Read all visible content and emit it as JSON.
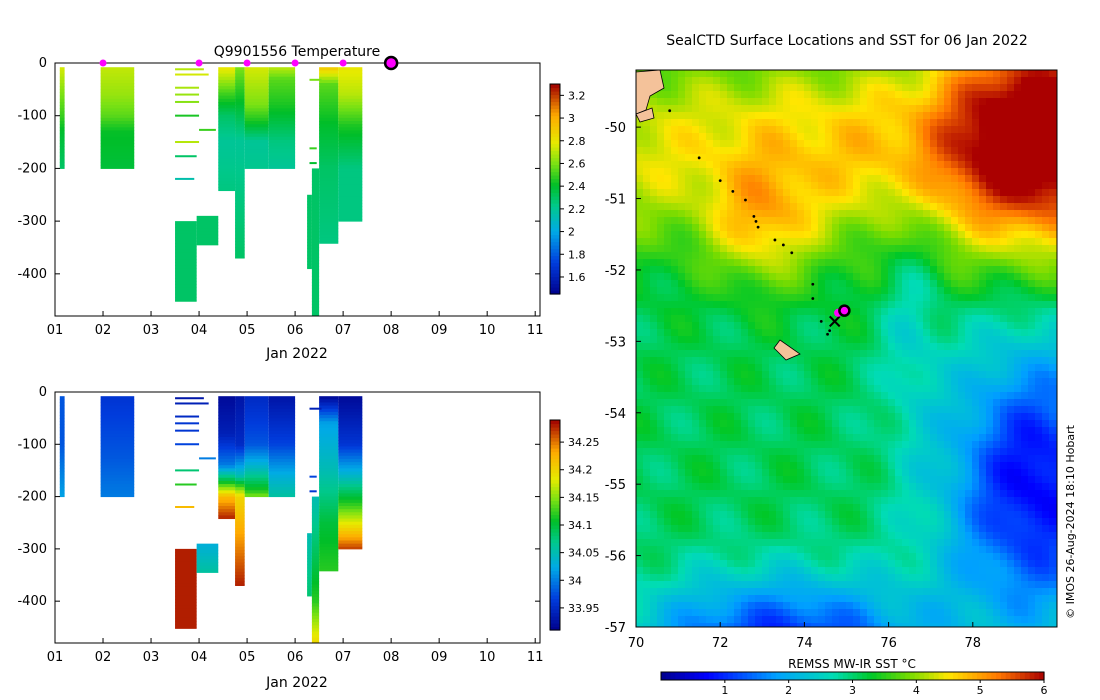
{
  "colors": {
    "axis": "#000000",
    "background": "#ffffff",
    "cruise_marker": "#ff00ff",
    "land": "#f4c29a"
  },
  "chart_data": [
    {
      "id": "temperature-section",
      "type": "heatmap",
      "title": "Q9901556  Temperature",
      "xlabel": "Jan 2022",
      "ylabel": "",
      "xlim": [
        1,
        11.1
      ],
      "ylim": [
        -480,
        0
      ],
      "x_ticks": [
        "01",
        "02",
        "03",
        "04",
        "05",
        "06",
        "07",
        "08",
        "09",
        "10",
        "11"
      ],
      "y_ticks": [
        "0",
        "-100",
        "-200",
        "-300",
        "-400"
      ],
      "y_tick_values": [
        0,
        -100,
        -200,
        -300,
        -400
      ],
      "colorbar": {
        "min": 1.45,
        "max": 3.3,
        "ticks": [
          "1.6",
          "1.8",
          "2",
          "2.2",
          "2.4",
          "2.6",
          "2.8",
          "3",
          "3.2"
        ],
        "tick_values": [
          1.6,
          1.8,
          2,
          2.2,
          2.4,
          2.6,
          2.8,
          3,
          3.2
        ]
      },
      "surface_markers_day": [
        2.0,
        4.0,
        5.0,
        6.0,
        7.0
      ],
      "current_marker_day": 8.0,
      "profiles": [
        {
          "x0": 1.1,
          "x1": 1.2,
          "depth_max": 200,
          "stops": [
            [
              10,
              2.75
            ],
            [
              60,
              2.6
            ],
            [
              100,
              2.5
            ],
            [
              130,
              2.4
            ],
            [
              200,
              2.3
            ]
          ]
        },
        {
          "x0": 1.95,
          "x1": 2.65,
          "depth_max": 200,
          "stops": [
            [
              10,
              2.72
            ],
            [
              60,
              2.65
            ],
            [
              100,
              2.55
            ],
            [
              130,
              2.42
            ],
            [
              200,
              2.38
            ]
          ]
        },
        {
          "x0": 3.5,
          "x1": 3.95,
          "depth_max": 452,
          "depth_min": 300,
          "stops": [
            [
              300,
              2.3
            ],
            [
              452,
              2.3
            ]
          ]
        },
        {
          "x0": 3.95,
          "x1": 4.4,
          "depth_max": 345,
          "depth_min": 290,
          "stops": [
            [
              290,
              2.3
            ],
            [
              345,
              2.3
            ]
          ]
        },
        {
          "x0": 4.4,
          "x1": 4.75,
          "depth_max": 242,
          "stops": [
            [
              10,
              2.8
            ],
            [
              60,
              2.5
            ],
            [
              100,
              2.3
            ],
            [
              150,
              2.2
            ],
            [
              242,
              2.25
            ]
          ]
        },
        {
          "x0": 4.75,
          "x1": 4.95,
          "depth_max": 370,
          "stops": [
            [
              10,
              2.6
            ],
            [
              60,
              2.45
            ],
            [
              150,
              2.2
            ],
            [
              250,
              2.25
            ],
            [
              370,
              2.3
            ]
          ]
        },
        {
          "x0": 4.95,
          "x1": 5.45,
          "depth_max": 200,
          "stops": [
            [
              10,
              2.75
            ],
            [
              80,
              2.6
            ],
            [
              110,
              2.45
            ],
            [
              150,
              2.2
            ],
            [
              200,
              2.22
            ]
          ]
        },
        {
          "x0": 5.45,
          "x1": 6.0,
          "depth_max": 200,
          "stops": [
            [
              10,
              2.7
            ],
            [
              30,
              2.55
            ],
            [
              80,
              2.45
            ],
            [
              150,
              2.25
            ],
            [
              200,
              2.2
            ]
          ]
        },
        {
          "x0": 6.25,
          "x1": 6.35,
          "depth_max": 390,
          "depth_min": 250,
          "stops": [
            [
              250,
              2.3
            ],
            [
              390,
              2.3
            ]
          ]
        },
        {
          "x0": 6.35,
          "x1": 6.5,
          "depth_max": 480,
          "depth_min": 200,
          "stops": [
            [
              200,
              2.3
            ],
            [
              480,
              2.3
            ]
          ]
        },
        {
          "x0": 6.5,
          "x1": 6.9,
          "depth_max": 342,
          "stops": [
            [
              10,
              2.9
            ],
            [
              40,
              2.55
            ],
            [
              120,
              2.4
            ],
            [
              200,
              2.3
            ],
            [
              342,
              2.25
            ]
          ]
        },
        {
          "x0": 6.9,
          "x1": 7.4,
          "depth_max": 300,
          "stops": [
            [
              10,
              2.8
            ],
            [
              60,
              2.7
            ],
            [
              120,
              2.45
            ],
            [
              200,
              2.25
            ],
            [
              300,
              2.25
            ]
          ]
        }
      ],
      "thin_lines": [
        {
          "x0": 3.5,
          "x1": 4.1,
          "depth": 10,
          "value": 2.7
        },
        {
          "x0": 3.5,
          "x1": 4.2,
          "depth": 20,
          "value": 2.75
        },
        {
          "x0": 3.5,
          "x1": 4.0,
          "depth": 45,
          "value": 2.68
        },
        {
          "x0": 3.5,
          "x1": 4.0,
          "depth": 58,
          "value": 2.65
        },
        {
          "x0": 3.5,
          "x1": 4.0,
          "depth": 72,
          "value": 2.62
        },
        {
          "x0": 3.5,
          "x1": 4.0,
          "depth": 98,
          "value": 2.45
        },
        {
          "x0": 4.0,
          "x1": 4.35,
          "depth": 125,
          "value": 2.5
        },
        {
          "x0": 3.5,
          "x1": 4.0,
          "depth": 148,
          "value": 2.7
        },
        {
          "x0": 3.5,
          "x1": 3.95,
          "depth": 175,
          "value": 2.3
        },
        {
          "x0": 3.5,
          "x1": 3.9,
          "depth": 218,
          "value": 2.15
        },
        {
          "x0": 6.3,
          "x1": 6.45,
          "depth": 160,
          "value": 2.5
        },
        {
          "x0": 6.3,
          "x1": 6.45,
          "depth": 188,
          "value": 2.4
        },
        {
          "x0": 6.3,
          "x1": 6.55,
          "depth": 30,
          "value": 2.6
        }
      ]
    },
    {
      "id": "salinity-section",
      "type": "heatmap",
      "title": "",
      "xlabel": "Jan 2022",
      "ylabel": "",
      "xlim": [
        1,
        11.1
      ],
      "ylim": [
        -480,
        0
      ],
      "x_ticks": [
        "01",
        "02",
        "03",
        "04",
        "05",
        "06",
        "07",
        "08",
        "09",
        "10",
        "11"
      ],
      "y_ticks": [
        "0",
        "-100",
        "-200",
        "-300",
        "-400"
      ],
      "y_tick_values": [
        0,
        -100,
        -200,
        -300,
        -400
      ],
      "colorbar": {
        "min": 33.91,
        "max": 34.29,
        "ticks": [
          "33.95",
          "34",
          "34.05",
          "34.1",
          "34.15",
          "34.2",
          "34.25"
        ],
        "tick_values": [
          33.95,
          34,
          34.05,
          34.1,
          34.15,
          34.2,
          34.25
        ]
      },
      "profiles": [
        {
          "x0": 1.1,
          "x1": 1.2,
          "depth_max": 200,
          "stops": [
            [
              10,
              33.98
            ],
            [
              100,
              33.98
            ],
            [
              150,
              34.0
            ],
            [
              200,
              34.02
            ]
          ]
        },
        {
          "x0": 1.95,
          "x1": 2.65,
          "depth_max": 200,
          "stops": [
            [
              10,
              33.96
            ],
            [
              60,
              33.97
            ],
            [
              120,
              33.98
            ],
            [
              200,
              34.0
            ]
          ]
        },
        {
          "x0": 3.5,
          "x1": 3.95,
          "depth_max": 452,
          "depth_min": 300,
          "stops": [
            [
              300,
              34.28
            ],
            [
              452,
              34.28
            ]
          ]
        },
        {
          "x0": 3.95,
          "x1": 4.4,
          "depth_max": 345,
          "depth_min": 290,
          "stops": [
            [
              290,
              34.03
            ],
            [
              345,
              34.06
            ]
          ]
        },
        {
          "x0": 4.4,
          "x1": 4.75,
          "depth_max": 242,
          "stops": [
            [
              10,
              33.92
            ],
            [
              80,
              33.94
            ],
            [
              140,
              34.0
            ],
            [
              170,
              34.1
            ],
            [
              200,
              34.22
            ],
            [
              242,
              34.28
            ]
          ]
        },
        {
          "x0": 4.75,
          "x1": 4.95,
          "depth_max": 370,
          "stops": [
            [
              10,
              33.93
            ],
            [
              100,
              33.95
            ],
            [
              160,
              34.05
            ],
            [
              200,
              34.2
            ],
            [
              370,
              34.28
            ]
          ]
        },
        {
          "x0": 4.95,
          "x1": 5.45,
          "depth_max": 200,
          "stops": [
            [
              10,
              33.95
            ],
            [
              100,
              33.98
            ],
            [
              150,
              34.05
            ],
            [
              190,
              34.12
            ],
            [
              200,
              34.15
            ]
          ]
        },
        {
          "x0": 5.45,
          "x1": 6.0,
          "depth_max": 200,
          "stops": [
            [
              10,
              33.93
            ],
            [
              100,
              33.97
            ],
            [
              160,
              34.03
            ],
            [
              200,
              34.06
            ]
          ]
        },
        {
          "x0": 6.25,
          "x1": 6.35,
          "depth_max": 390,
          "depth_min": 270,
          "stops": [
            [
              270,
              34.05
            ],
            [
              390,
              34.08
            ]
          ]
        },
        {
          "x0": 6.35,
          "x1": 6.5,
          "depth_max": 480,
          "depth_min": 200,
          "stops": [
            [
              200,
              34.05
            ],
            [
              400,
              34.12
            ],
            [
              480,
              34.2
            ]
          ]
        },
        {
          "x0": 6.5,
          "x1": 6.9,
          "depth_max": 342,
          "stops": [
            [
              10,
              33.92
            ],
            [
              60,
              34.02
            ],
            [
              150,
              34.05
            ],
            [
              250,
              34.1
            ],
            [
              342,
              34.12
            ]
          ]
        },
        {
          "x0": 6.9,
          "x1": 7.4,
          "depth_max": 300,
          "stops": [
            [
              10,
              33.92
            ],
            [
              100,
              33.96
            ],
            [
              160,
              34.04
            ],
            [
              220,
              34.13
            ],
            [
              260,
              34.2
            ],
            [
              300,
              34.27
            ]
          ]
        }
      ],
      "thin_lines": [
        {
          "x0": 3.5,
          "x1": 4.1,
          "depth": 10,
          "value": 33.93
        },
        {
          "x0": 3.5,
          "x1": 4.2,
          "depth": 20,
          "value": 33.94
        },
        {
          "x0": 3.5,
          "x1": 4.0,
          "depth": 45,
          "value": 33.95
        },
        {
          "x0": 3.5,
          "x1": 4.0,
          "depth": 58,
          "value": 33.96
        },
        {
          "x0": 3.5,
          "x1": 4.0,
          "depth": 72,
          "value": 33.96
        },
        {
          "x0": 3.5,
          "x1": 4.0,
          "depth": 98,
          "value": 33.97
        },
        {
          "x0": 4.0,
          "x1": 4.35,
          "depth": 125,
          "value": 34.0
        },
        {
          "x0": 3.5,
          "x1": 4.0,
          "depth": 148,
          "value": 34.08
        },
        {
          "x0": 3.5,
          "x1": 3.95,
          "depth": 175,
          "value": 34.12
        },
        {
          "x0": 3.5,
          "x1": 3.9,
          "depth": 218,
          "value": 34.22
        },
        {
          "x0": 6.3,
          "x1": 6.45,
          "depth": 160,
          "value": 33.97
        },
        {
          "x0": 6.3,
          "x1": 6.45,
          "depth": 188,
          "value": 33.96
        },
        {
          "x0": 6.3,
          "x1": 6.55,
          "depth": 30,
          "value": 33.94
        }
      ]
    },
    {
      "id": "sst-map",
      "type": "heatmap",
      "title": "SealCTD Surface Locations and SST for 06 Jan 2022",
      "xlabel": "",
      "ylabel": "",
      "xlim": [
        70,
        80
      ],
      "ylim": [
        -57,
        -49.2
      ],
      "x_ticks": [
        "70",
        "72",
        "74",
        "76",
        "78"
      ],
      "x_tick_values": [
        70,
        72,
        74,
        76,
        78
      ],
      "y_ticks": [
        "-50",
        "-51",
        "-52",
        "-53",
        "-54",
        "-55",
        "-56",
        "-57"
      ],
      "y_tick_values": [
        -50,
        -51,
        -52,
        -53,
        -54,
        -55,
        -56,
        -57
      ],
      "colorbar": {
        "label": "REMSS MW-IR SST °C",
        "min": 0,
        "max": 6,
        "ticks": [
          "1",
          "2",
          "3",
          "4",
          "5",
          "6"
        ],
        "tick_values": [
          1,
          2,
          3,
          4,
          5,
          6
        ]
      },
      "credit": "© IMOS 26-Aug-2024 18:10 Hobart",
      "track_points": [
        {
          "lon": 70.8,
          "lat": -49.77
        },
        {
          "lon": 71.5,
          "lat": -50.43
        },
        {
          "lon": 72.0,
          "lat": -50.75
        },
        {
          "lon": 72.3,
          "lat": -50.9
        },
        {
          "lon": 72.6,
          "lat": -51.02
        },
        {
          "lon": 72.8,
          "lat": -51.25
        },
        {
          "lon": 72.85,
          "lat": -51.32
        },
        {
          "lon": 72.9,
          "lat": -51.4
        },
        {
          "lon": 73.3,
          "lat": -51.58
        },
        {
          "lon": 73.5,
          "lat": -51.65
        },
        {
          "lon": 73.7,
          "lat": -51.76
        },
        {
          "lon": 74.2,
          "lat": -52.2
        },
        {
          "lon": 74.2,
          "lat": -52.4
        },
        {
          "lon": 74.4,
          "lat": -52.72
        },
        {
          "lon": 74.6,
          "lat": -52.85
        },
        {
          "lon": 74.55,
          "lat": -52.9
        }
      ],
      "cross_marker": {
        "lon": 74.72,
        "lat": -52.72
      },
      "current_position": {
        "lon": 74.95,
        "lat": -52.57
      },
      "recent_position": {
        "lon": 74.8,
        "lat": -52.6
      }
    }
  ]
}
